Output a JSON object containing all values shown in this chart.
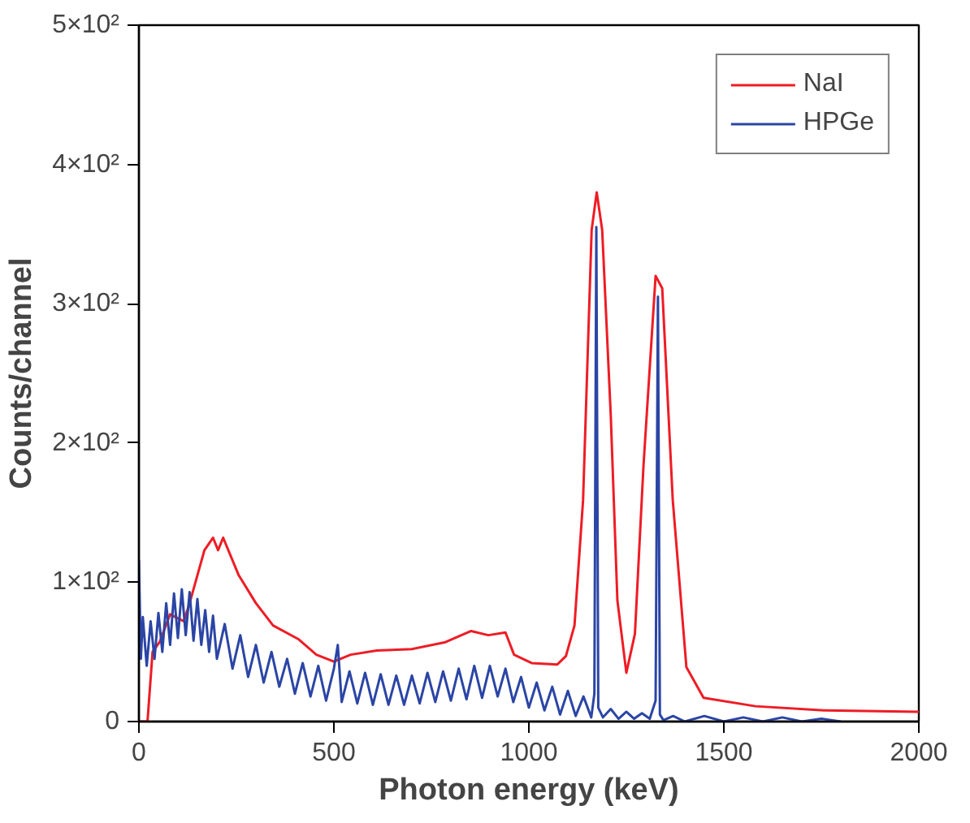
{
  "chart_data": {
    "type": "line",
    "xlabel": "Photon energy (keV)",
    "ylabel": "Counts/channel",
    "xlim": [
      0,
      2000
    ],
    "xticks": [
      0,
      500,
      1000,
      1500,
      2000
    ],
    "ylim": [
      0,
      500
    ],
    "yticks": [
      0,
      {
        "value": 100,
        "label": "1×10²"
      },
      {
        "value": 200,
        "label": "2×10²"
      },
      {
        "value": 300,
        "label": "3×10²"
      },
      {
        "value": 400,
        "label": "4×10²"
      },
      {
        "value": 500,
        "label": "5×10²"
      }
    ],
    "grid": false,
    "legend": "top right",
    "marker": "none",
    "line_style": "solid",
    "series": [
      {
        "name": "NaI",
        "color": "#ee1c25",
        "x": [
          0,
          22,
          35,
          53,
          80,
          115,
          130,
          168,
          190,
          203,
          216,
          256,
          300,
          344,
          410,
          455,
          500,
          543,
          610,
          700,
          786,
          852,
          896,
          940,
          962,
          1007,
          1073,
          1095,
          1117,
          1139,
          1161,
          1174,
          1188,
          1210,
          1227,
          1250,
          1272,
          1294,
          1325,
          1342,
          1369,
          1404,
          1448,
          1581,
          1757,
          2000
        ],
        "values": [
          0,
          0,
          50,
          57,
          77,
          72,
          85,
          123,
          132,
          123,
          132,
          105,
          85,
          69,
          59,
          48,
          43,
          48,
          51,
          52,
          57,
          65,
          62,
          64,
          48,
          42,
          41,
          47,
          69,
          159,
          353,
          380,
          353,
          220,
          87,
          35,
          63,
          184,
          320,
          311,
          159,
          39,
          17,
          11,
          8,
          7
        ]
      },
      {
        "name": "HPGe",
        "color": "#2b45a5",
        "x": [
          0,
          5,
          10,
          20,
          30,
          40,
          50,
          60,
          70,
          80,
          90,
          100,
          110,
          120,
          130,
          140,
          150,
          160,
          170,
          180,
          190,
          200,
          220,
          240,
          260,
          280,
          300,
          320,
          340,
          360,
          380,
          400,
          420,
          440,
          460,
          480,
          500,
          510,
          520,
          540,
          560,
          580,
          600,
          620,
          640,
          660,
          680,
          700,
          720,
          740,
          760,
          780,
          800,
          820,
          840,
          860,
          880,
          900,
          920,
          940,
          960,
          980,
          1000,
          1020,
          1040,
          1060,
          1080,
          1100,
          1120,
          1140,
          1160,
          1168,
          1173,
          1178,
          1190,
          1210,
          1230,
          1250,
          1270,
          1290,
          1310,
          1325,
          1331,
          1336,
          1345,
          1370,
          1400,
          1450,
          1500,
          1550,
          1600,
          1650,
          1700,
          1750,
          1800
        ],
        "values": [
          116,
          45,
          75,
          40,
          72,
          45,
          78,
          50,
          85,
          55,
          92,
          60,
          95,
          62,
          93,
          58,
          88,
          55,
          80,
          50,
          76,
          45,
          70,
          38,
          62,
          32,
          55,
          28,
          50,
          25,
          45,
          20,
          42,
          18,
          40,
          15,
          38,
          55,
          14,
          36,
          13,
          35,
          12,
          34,
          12,
          33,
          12,
          33,
          13,
          35,
          14,
          36,
          15,
          38,
          16,
          40,
          17,
          40,
          18,
          38,
          14,
          32,
          10,
          28,
          8,
          25,
          5,
          22,
          4,
          18,
          3,
          20,
          355,
          10,
          3,
          9,
          2,
          7,
          2,
          6,
          2,
          15,
          305,
          5,
          1,
          4,
          0,
          4,
          0,
          3,
          0,
          3,
          0,
          2,
          0
        ]
      }
    ]
  }
}
